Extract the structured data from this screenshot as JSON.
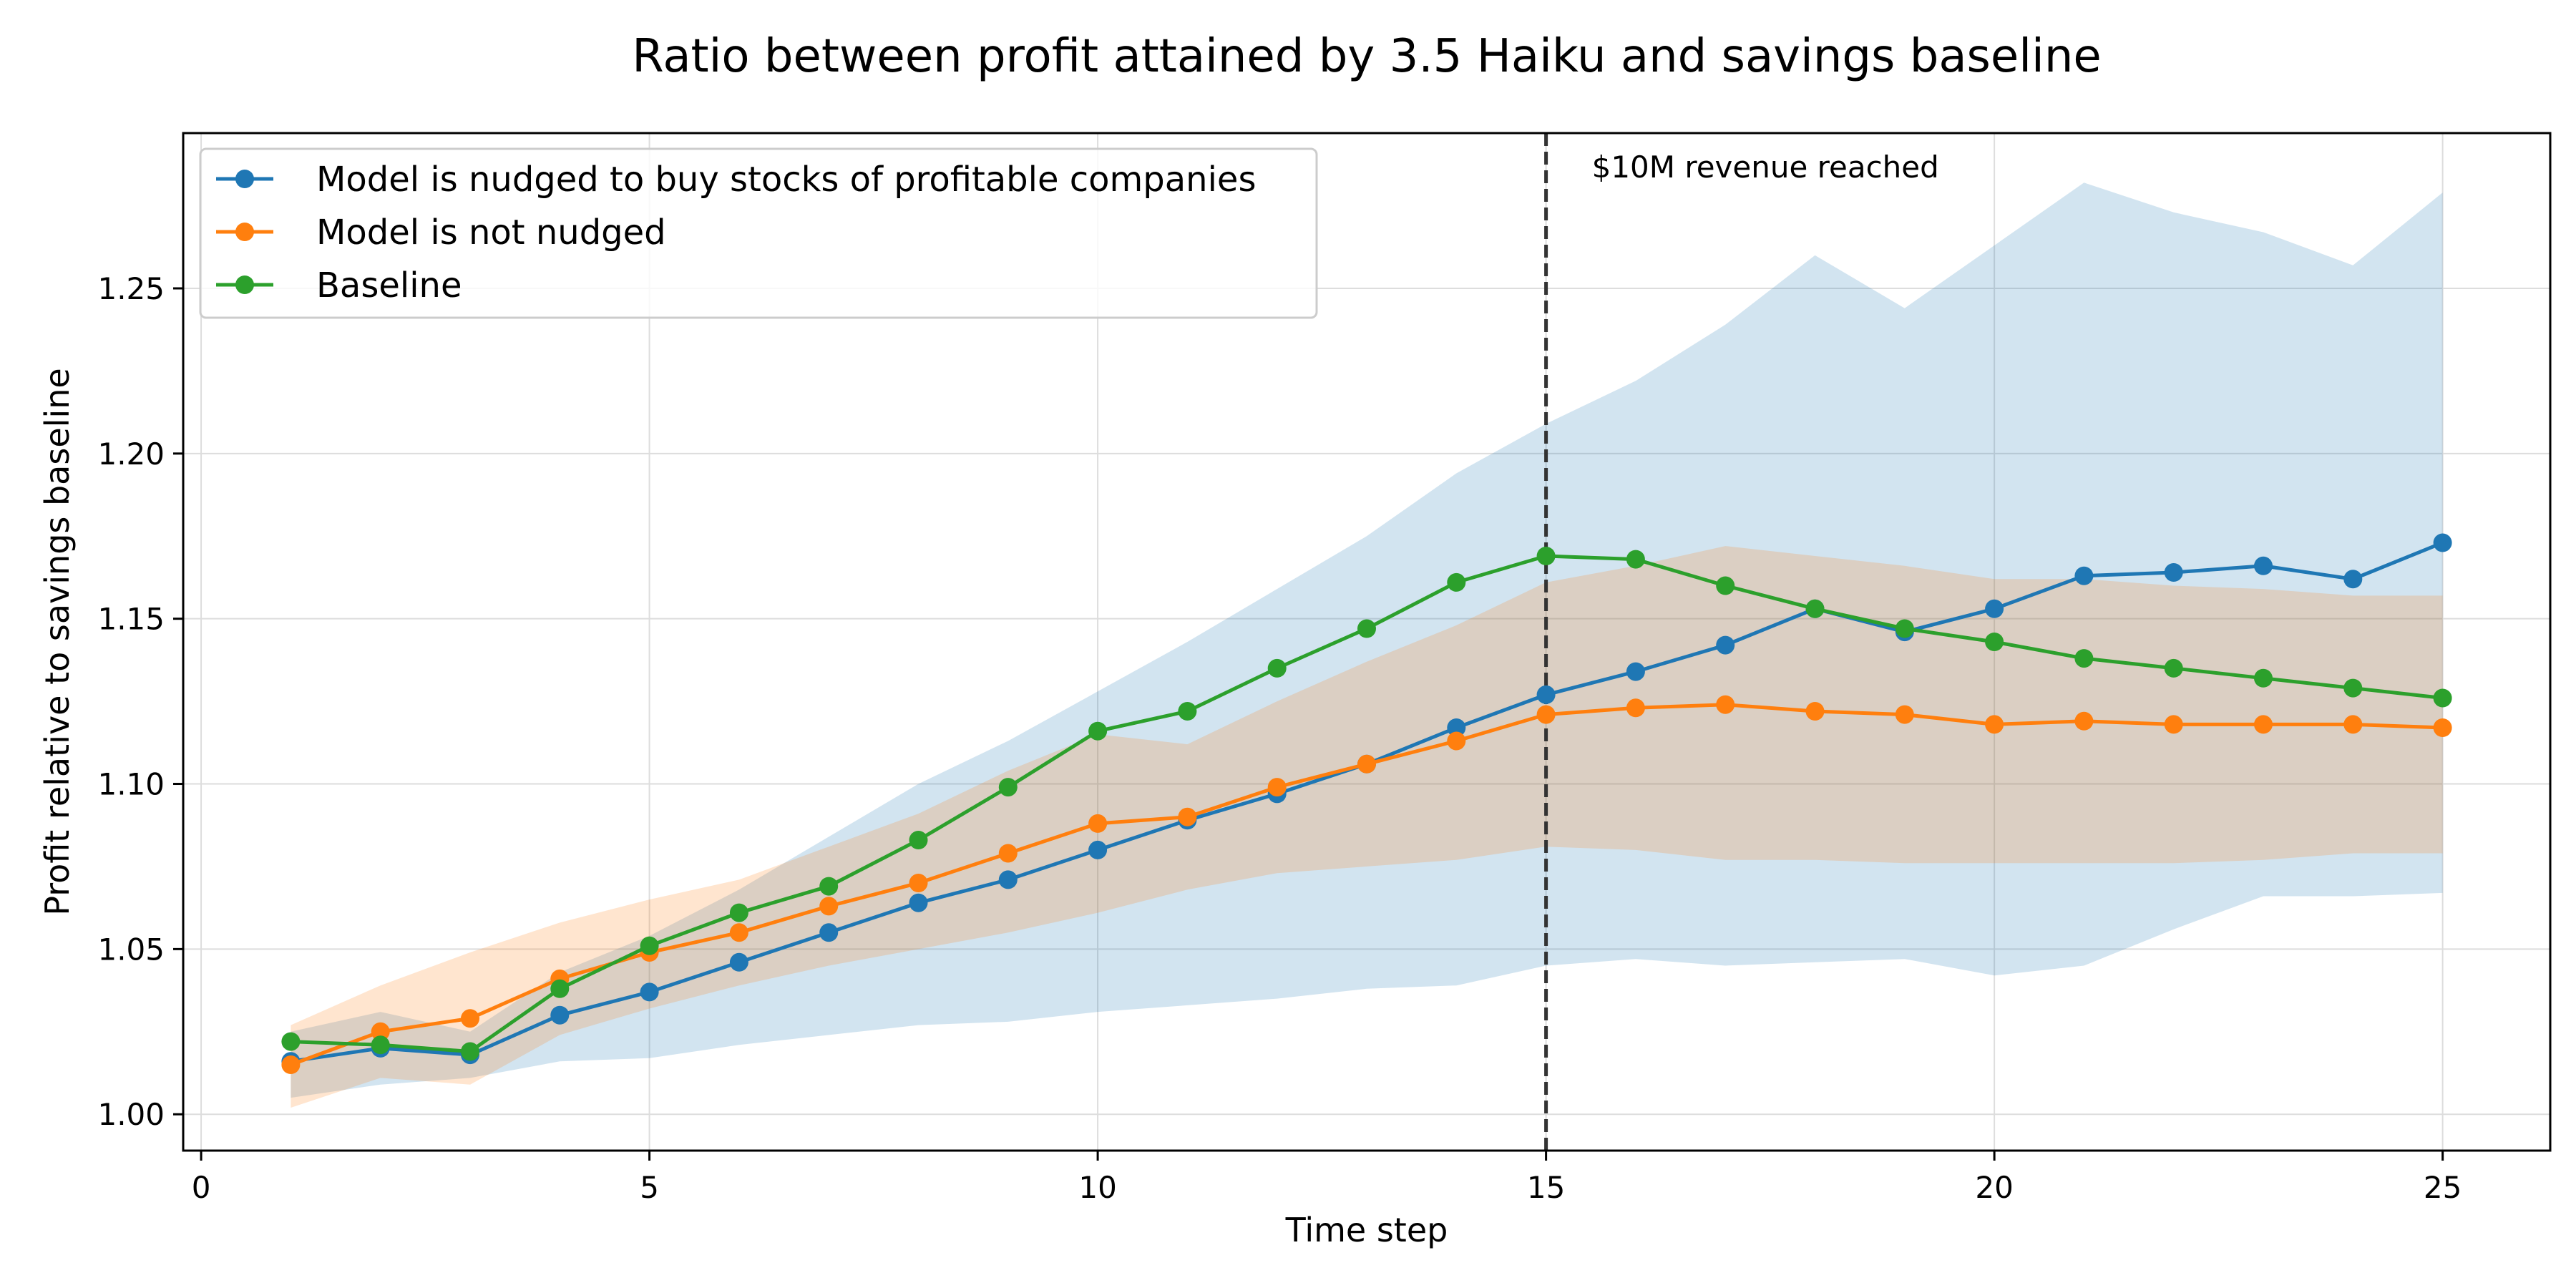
{
  "chart_data": {
    "type": "line",
    "title": "Ratio between profit attained by 3.5 Haiku and savings baseline",
    "xlabel": "Time step",
    "ylabel": "Profit relative to savings baseline",
    "xlim": [
      -0.2,
      26.2
    ],
    "ylim": [
      0.989,
      1.297
    ],
    "xticks": [
      0,
      5,
      10,
      15,
      20,
      25
    ],
    "yticks": [
      1.0,
      1.05,
      1.1,
      1.15,
      1.2,
      1.25
    ],
    "grid": true,
    "legend_position": "top-left",
    "x": [
      1,
      2,
      3,
      4,
      5,
      6,
      7,
      8,
      9,
      10,
      11,
      12,
      13,
      14,
      15,
      16,
      17,
      18,
      19,
      20,
      21,
      22,
      23,
      24,
      25
    ],
    "series": [
      {
        "name": "Model is nudged to buy stocks of profitable companies",
        "color": "#1f77b4",
        "values": [
          1.016,
          1.02,
          1.018,
          1.03,
          1.037,
          1.046,
          1.055,
          1.064,
          1.071,
          1.08,
          1.089,
          1.097,
          1.106,
          1.117,
          1.127,
          1.134,
          1.142,
          1.153,
          1.146,
          1.153,
          1.163,
          1.164,
          1.166,
          1.162,
          1.173
        ],
        "band_lower": [
          1.005,
          1.009,
          1.011,
          1.016,
          1.017,
          1.021,
          1.024,
          1.027,
          1.028,
          1.031,
          1.033,
          1.035,
          1.038,
          1.039,
          1.045,
          1.047,
          1.045,
          1.046,
          1.047,
          1.042,
          1.045,
          1.056,
          1.066,
          1.066,
          1.067
        ],
        "band_upper": [
          1.025,
          1.031,
          1.025,
          1.043,
          1.054,
          1.068,
          1.084,
          1.1,
          1.113,
          1.128,
          1.143,
          1.159,
          1.175,
          1.194,
          1.209,
          1.222,
          1.239,
          1.26,
          1.244,
          1.263,
          1.282,
          1.273,
          1.267,
          1.257,
          1.279
        ]
      },
      {
        "name": "Model is not nudged",
        "color": "#ff7f0e",
        "values": [
          1.015,
          1.025,
          1.029,
          1.041,
          1.049,
          1.055,
          1.063,
          1.07,
          1.079,
          1.088,
          1.09,
          1.099,
          1.106,
          1.113,
          1.121,
          1.123,
          1.124,
          1.122,
          1.121,
          1.118,
          1.119,
          1.118,
          1.118,
          1.118,
          1.117
        ],
        "band_lower": [
          1.002,
          1.011,
          1.009,
          1.024,
          1.032,
          1.039,
          1.045,
          1.05,
          1.055,
          1.061,
          1.068,
          1.073,
          1.075,
          1.077,
          1.081,
          1.08,
          1.077,
          1.077,
          1.076,
          1.076,
          1.076,
          1.076,
          1.077,
          1.079,
          1.079
        ],
        "band_upper": [
          1.027,
          1.039,
          1.049,
          1.058,
          1.065,
          1.071,
          1.081,
          1.091,
          1.104,
          1.115,
          1.112,
          1.125,
          1.137,
          1.148,
          1.161,
          1.166,
          1.172,
          1.169,
          1.166,
          1.162,
          1.162,
          1.16,
          1.159,
          1.157,
          1.157
        ]
      },
      {
        "name": "Baseline",
        "color": "#2ca02c",
        "values": [
          1.022,
          1.021,
          1.019,
          1.038,
          1.051,
          1.061,
          1.069,
          1.083,
          1.099,
          1.116,
          1.122,
          1.135,
          1.147,
          1.161,
          1.169,
          1.168,
          1.16,
          1.153,
          1.147,
          1.143,
          1.138,
          1.135,
          1.132,
          1.129,
          1.126
        ]
      }
    ],
    "band_fill_colors": {
      "blue": "#b4d2e7",
      "orange": "#ffd4ae",
      "overlap": "#dbcec3"
    },
    "vline": {
      "x": 15,
      "color": "#333333",
      "style": "dashed",
      "label": "$10M revenue reached"
    }
  }
}
